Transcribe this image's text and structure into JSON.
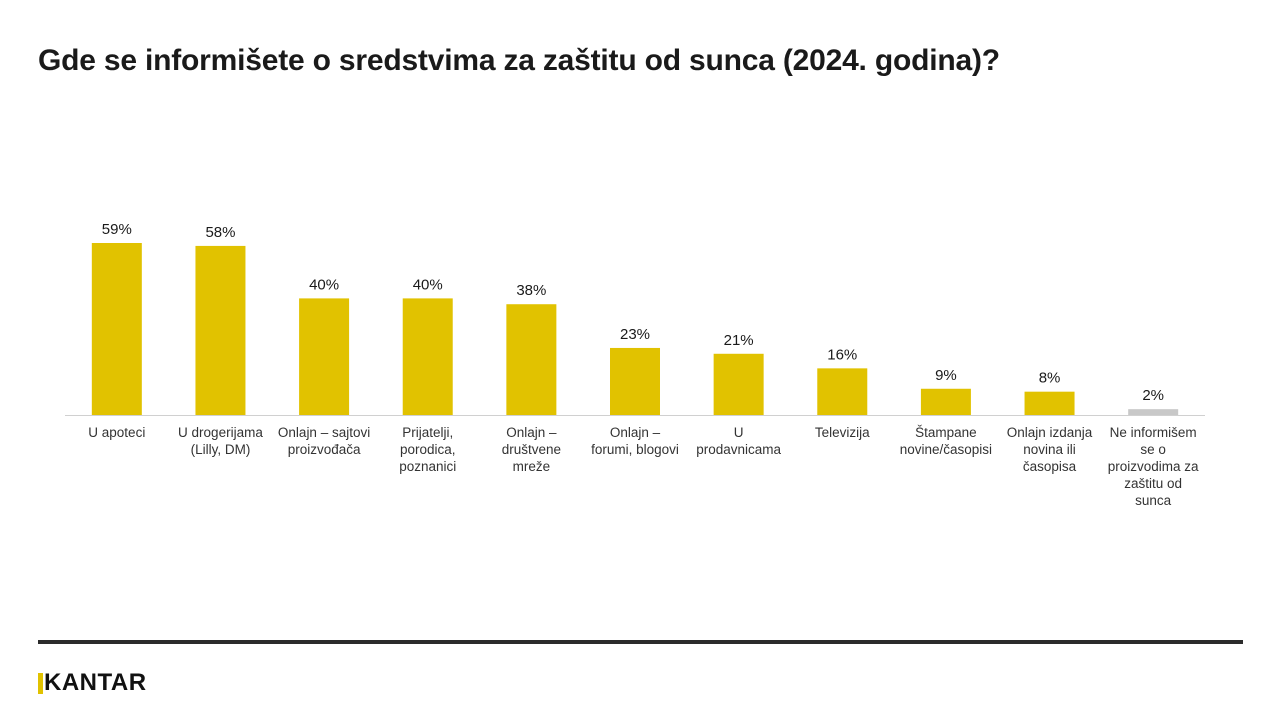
{
  "header": {
    "title": "Gde se informišete o sredstvima za zaštitu od sunca (2024. godina)?"
  },
  "chart_data": {
    "type": "bar",
    "categories": [
      "U apoteci",
      "U drogerijama (Lilly, DM)",
      "Onlajn – sajtovi proizvođača",
      "Prijatelji, porodica, poznanici",
      "Onlajn – društvene mreže",
      "Onlajn – forumi, blogovi",
      "U prodavnicama",
      "Televizija",
      "Štampane novine/časopisi",
      "Onlajn izdanja novina ili časopisa",
      "Ne informišem se o proizvodima za zaštitu od sunca"
    ],
    "category_lines": [
      [
        "U apoteci"
      ],
      [
        "U drogerijama",
        "(Lilly, DM)"
      ],
      [
        "Onlajn – sajtovi",
        "proizvođača"
      ],
      [
        "Prijatelji,",
        "porodica,",
        "poznanici"
      ],
      [
        "Onlajn –",
        "društvene",
        "mreže"
      ],
      [
        "Onlajn –",
        "forumi, blogovi"
      ],
      [
        "U",
        "prodavnicama"
      ],
      [
        "Televizija"
      ],
      [
        "Štampane",
        "novine/časopisi"
      ],
      [
        "Onlajn izdanja",
        "novina ili",
        "časopisa"
      ],
      [
        "Ne informišem",
        "se o",
        "proizvodima za",
        "zaštitu od",
        "sunca"
      ]
    ],
    "values": [
      59,
      58,
      40,
      40,
      38,
      23,
      21,
      16,
      9,
      8,
      2
    ],
    "value_labels": [
      "59%",
      "58%",
      "40%",
      "40%",
      "38%",
      "23%",
      "21%",
      "16%",
      "9%",
      "8%",
      "2%"
    ],
    "unit": "%",
    "ylim": [
      0,
      60
    ],
    "grid": false,
    "legend": "none",
    "colors": {
      "bar": "#e1c200",
      "bar_last": "#c8c8c8",
      "axis": "#d0d0d0"
    }
  },
  "footer": {
    "logo_text": "KANTAR",
    "logo_accent": "#e1c200"
  }
}
